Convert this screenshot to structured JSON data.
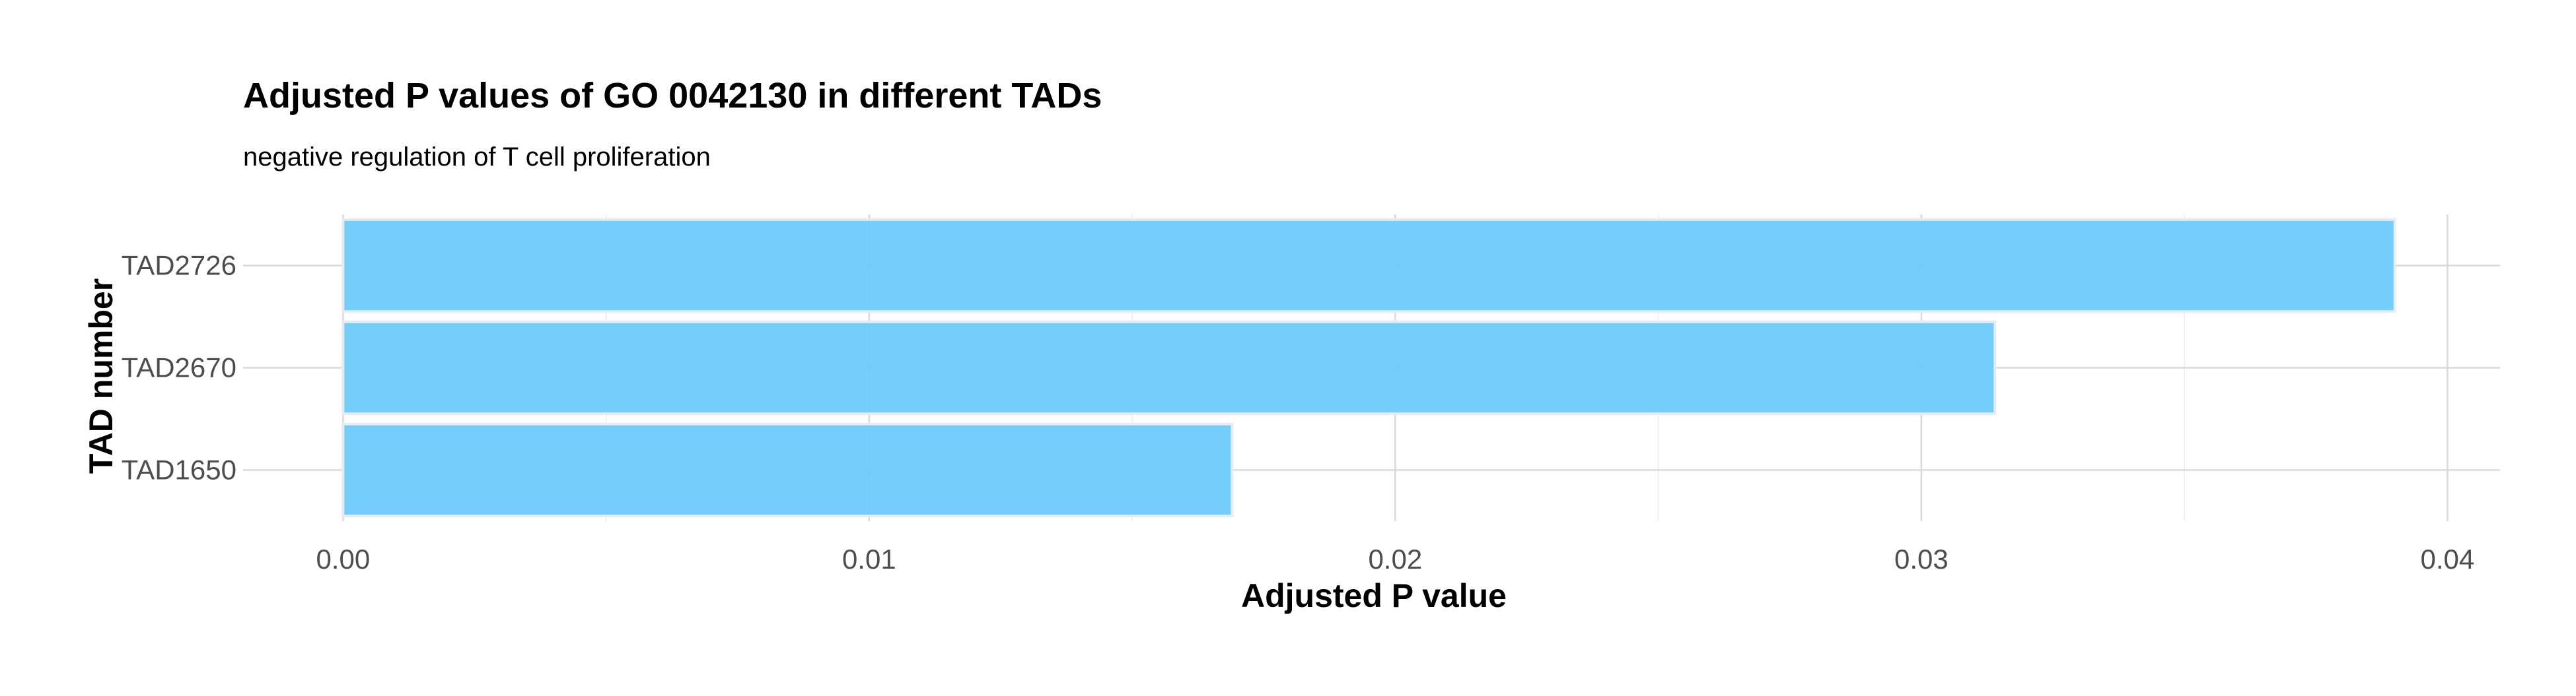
{
  "chart_data": {
    "type": "bar",
    "orientation": "horizontal",
    "title": "Adjusted P values of GO 0042130 in different TADs",
    "subtitle": "negative regulation of T cell proliferation",
    "xlabel": "Adjusted P value",
    "ylabel": "TAD number",
    "categories": [
      "TAD2726",
      "TAD2670",
      "TAD1650"
    ],
    "values": [
      0.039,
      0.0314,
      0.0169
    ],
    "xlim": [
      -0.0019,
      0.041
    ],
    "x_ticks": [
      {
        "value": 0.0,
        "label": "0.00"
      },
      {
        "value": 0.01,
        "label": "0.01"
      },
      {
        "value": 0.02,
        "label": "0.02"
      },
      {
        "value": 0.03,
        "label": "0.03"
      },
      {
        "value": 0.04,
        "label": "0.04"
      }
    ],
    "x_minor_ticks": [
      0.005,
      0.015,
      0.025,
      0.035
    ],
    "bar_color": "#6ecbfa",
    "grid": true,
    "legend": "none"
  }
}
